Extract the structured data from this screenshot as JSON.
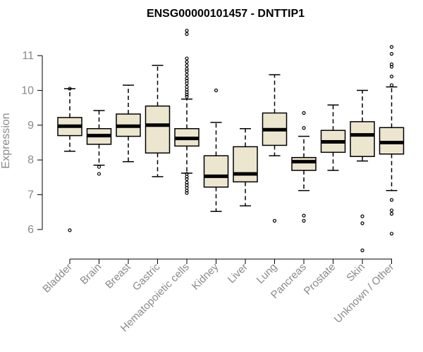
{
  "chart_data": {
    "type": "boxplot",
    "title": "ENSG00000101457 - DNTTIP1",
    "xlabel": "",
    "ylabel": "Expression",
    "ylim": [
      5.1,
      11.9
    ],
    "yticks": [
      6,
      7,
      8,
      9,
      10,
      11
    ],
    "grid": false,
    "box_fill": "#ede6cf",
    "categories": [
      "Bladder",
      "Brain",
      "Breast",
      "Gastric",
      "Hematopoietic cells",
      "Kidney",
      "Liver",
      "Lung",
      "Pancreas",
      "Prostate",
      "Skin",
      "Unknown / Other"
    ],
    "boxes": [
      {
        "q1": 8.7,
        "median": 8.97,
        "q3": 9.22,
        "whisker_low": 8.25,
        "whisker_high": 10.05,
        "outliers": [
          5.98,
          10.05
        ]
      },
      {
        "q1": 8.45,
        "median": 8.7,
        "q3": 8.9,
        "whisker_low": 7.85,
        "whisker_high": 9.42,
        "outliers": [
          7.8,
          7.6
        ]
      },
      {
        "q1": 8.68,
        "median": 8.97,
        "q3": 9.32,
        "whisker_low": 7.95,
        "whisker_high": 10.15,
        "outliers": []
      },
      {
        "q1": 8.2,
        "median": 9.0,
        "q3": 9.55,
        "whisker_low": 7.52,
        "whisker_high": 10.72,
        "outliers": []
      },
      {
        "q1": 8.4,
        "median": 8.62,
        "q3": 8.9,
        "whisker_low": 7.62,
        "whisker_high": 9.75,
        "outliers": [
          11.72,
          11.62,
          10.92,
          10.82,
          10.72,
          10.62,
          10.55,
          10.45,
          10.35,
          10.28,
          10.2,
          10.1,
          10.02,
          9.95,
          9.88,
          9.82,
          7.6,
          7.52,
          7.45,
          7.35,
          7.28,
          7.2,
          7.12,
          7.05
        ]
      },
      {
        "q1": 7.22,
        "median": 7.53,
        "q3": 8.12,
        "whisker_low": 6.52,
        "whisker_high": 9.08,
        "outliers": [
          10.0
        ]
      },
      {
        "q1": 7.37,
        "median": 7.6,
        "q3": 8.38,
        "whisker_low": 6.68,
        "whisker_high": 8.9,
        "outliers": []
      },
      {
        "q1": 8.42,
        "median": 8.87,
        "q3": 9.35,
        "whisker_low": 8.12,
        "whisker_high": 10.45,
        "outliers": [
          6.25
        ]
      },
      {
        "q1": 7.7,
        "median": 7.95,
        "q3": 8.07,
        "whisker_low": 7.12,
        "whisker_high": 8.68,
        "outliers": [
          9.35,
          8.92,
          6.4,
          6.25
        ]
      },
      {
        "q1": 8.22,
        "median": 8.52,
        "q3": 8.85,
        "whisker_low": 7.7,
        "whisker_high": 9.58,
        "outliers": []
      },
      {
        "q1": 8.1,
        "median": 8.72,
        "q3": 9.1,
        "whisker_low": 7.97,
        "whisker_high": 10.0,
        "outliers": [
          6.38,
          6.18,
          5.4
        ]
      },
      {
        "q1": 8.17,
        "median": 8.5,
        "q3": 8.93,
        "whisker_low": 7.12,
        "whisker_high": 10.1,
        "outliers": [
          11.25,
          11.05,
          10.75,
          10.68,
          10.4,
          10.15,
          6.85,
          6.55,
          6.45,
          5.88
        ]
      }
    ]
  }
}
